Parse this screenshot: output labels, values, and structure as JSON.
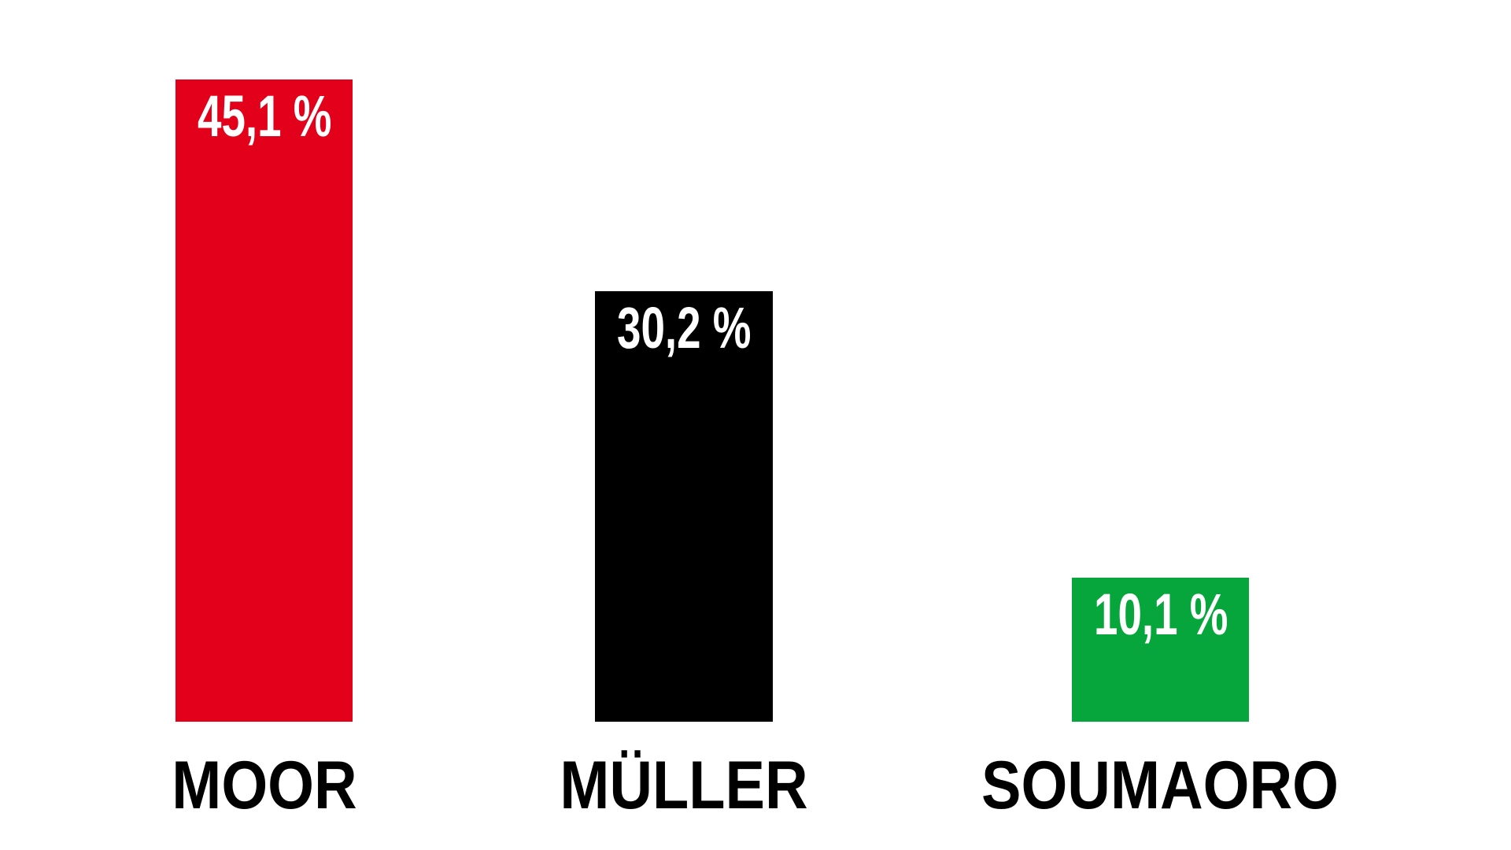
{
  "chart_data": {
    "type": "bar",
    "title": "",
    "xlabel": "",
    "ylabel": "",
    "categories": [
      "MOOR",
      "MÜLLER",
      "SOUMAORO"
    ],
    "values": [
      45.1,
      30.2,
      10.1
    ],
    "value_labels": [
      "45,1 %",
      "30,2 %",
      "10,1 %"
    ],
    "bar_colors": [
      "#e2001a",
      "#000000",
      "#06a63c"
    ],
    "value_label_color": "#ffffff",
    "category_label_color": "#000000",
    "background_color": "#ffffff",
    "ylim": [
      0,
      50
    ],
    "grid": false,
    "legend": false,
    "orientation": "vertical",
    "value_label_position": "inside-top-left"
  }
}
